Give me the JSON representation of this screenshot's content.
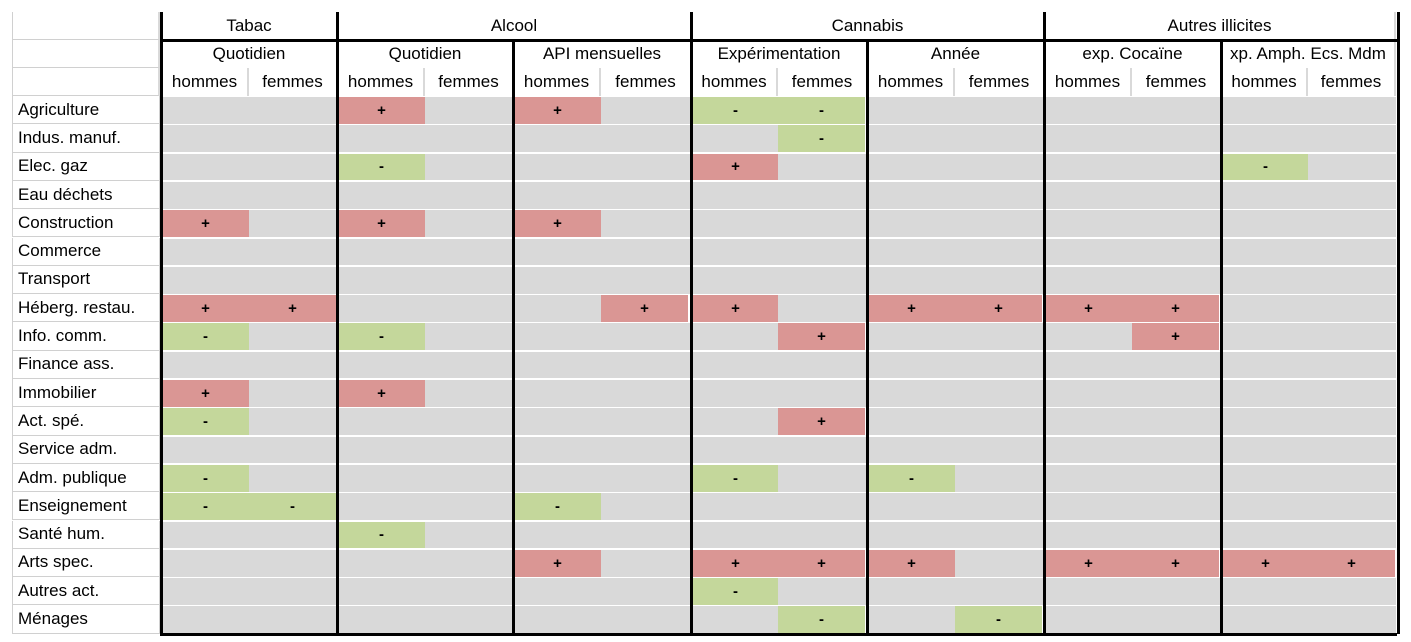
{
  "groups": [
    "Tabac",
    "Alcool",
    "Cannabis",
    "Autres illicites"
  ],
  "subgroups": [
    "Quotidien",
    "Quotidien",
    "API mensuelles",
    "Expérimentation",
    "Année",
    "exp. Cocaïne",
    "xp. Amph. Ecs. Mdm"
  ],
  "sexes": [
    "hommes",
    "femmes"
  ],
  "colors": {
    "positive": "#da9694",
    "negative": "#c4d79b",
    "neutral": "#d9d9d9"
  },
  "rows": [
    {
      "label": "Agriculture",
      "cells": [
        "",
        "",
        "+",
        "",
        "+",
        "",
        "-",
        "-",
        "",
        "",
        "",
        "",
        "",
        ""
      ]
    },
    {
      "label": "Indus. manuf.",
      "cells": [
        "",
        "",
        "",
        "",
        "",
        "",
        "",
        "-",
        "",
        "",
        "",
        "",
        "",
        ""
      ]
    },
    {
      "label": "Elec. gaz",
      "cells": [
        "",
        "",
        "-",
        "",
        "",
        "",
        "+",
        "",
        "",
        "",
        "",
        "",
        "-",
        ""
      ]
    },
    {
      "label": "Eau déchets",
      "cells": [
        "",
        "",
        "",
        "",
        "",
        "",
        "",
        "",
        "",
        "",
        "",
        "",
        "",
        ""
      ]
    },
    {
      "label": "Construction",
      "cells": [
        "+",
        "",
        "+",
        "",
        "+",
        "",
        "",
        "",
        "",
        "",
        "",
        "",
        "",
        ""
      ]
    },
    {
      "label": "Commerce",
      "cells": [
        "",
        "",
        "",
        "",
        "",
        "",
        "",
        "",
        "",
        "",
        "",
        "",
        "",
        ""
      ]
    },
    {
      "label": "Transport",
      "cells": [
        "",
        "",
        "",
        "",
        "",
        "",
        "",
        "",
        "",
        "",
        "",
        "",
        "",
        ""
      ]
    },
    {
      "label": "Héberg. restau.",
      "cells": [
        "+",
        "+",
        "",
        "",
        "",
        "+",
        "+",
        "",
        "+",
        "+",
        "+",
        "+",
        "",
        ""
      ]
    },
    {
      "label": "Info. comm.",
      "cells": [
        "-",
        "",
        "-",
        "",
        "",
        "",
        "",
        "+",
        "",
        "",
        "",
        "+",
        "",
        ""
      ]
    },
    {
      "label": "Finance ass.",
      "cells": [
        "",
        "",
        "",
        "",
        "",
        "",
        "",
        "",
        "",
        "",
        "",
        "",
        "",
        ""
      ]
    },
    {
      "label": "Immobilier",
      "cells": [
        "+",
        "",
        "+",
        "",
        "",
        "",
        "",
        "",
        "",
        "",
        "",
        "",
        "",
        ""
      ]
    },
    {
      "label": "Act. spé.",
      "cells": [
        "-",
        "",
        "",
        "",
        "",
        "",
        "",
        "+",
        "",
        "",
        "",
        "",
        "",
        ""
      ]
    },
    {
      "label": "Service adm.",
      "cells": [
        "",
        "",
        "",
        "",
        "",
        "",
        "",
        "",
        "",
        "",
        "",
        "",
        "",
        ""
      ]
    },
    {
      "label": "Adm. publique",
      "cells": [
        "-",
        "",
        "",
        "",
        "",
        "",
        "-",
        "",
        "-",
        "",
        "",
        "",
        "",
        ""
      ]
    },
    {
      "label": "Enseignement",
      "cells": [
        "-",
        "-",
        "",
        "",
        "-",
        "",
        "",
        "",
        "",
        "",
        "",
        "",
        "",
        ""
      ]
    },
    {
      "label": "Santé hum.",
      "cells": [
        "",
        "",
        "-",
        "",
        "",
        "",
        "",
        "",
        "",
        "",
        "",
        "",
        "",
        ""
      ]
    },
    {
      "label": "Arts spec.",
      "cells": [
        "",
        "",
        "",
        "",
        "+",
        "",
        "+",
        "+",
        "+",
        "",
        "+",
        "+",
        "+",
        "+"
      ]
    },
    {
      "label": "Autres act.",
      "cells": [
        "",
        "",
        "",
        "",
        "",
        "",
        "-",
        "",
        "",
        "",
        "",
        "",
        "",
        ""
      ]
    },
    {
      "label": "Ménages",
      "cells": [
        "",
        "",
        "",
        "",
        "",
        "",
        "",
        "-",
        "",
        "-",
        "",
        "",
        "",
        ""
      ]
    }
  ]
}
